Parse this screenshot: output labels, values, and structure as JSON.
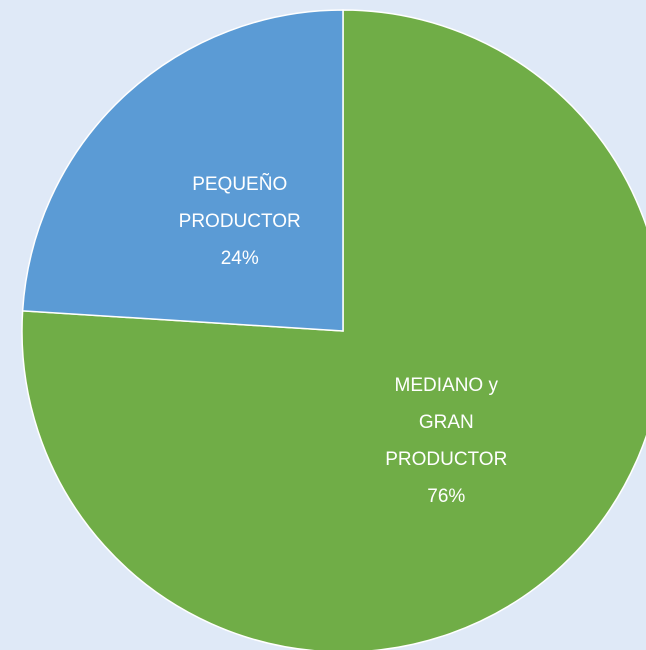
{
  "chart_data": {
    "type": "pie",
    "categories": [
      "MEDIANO y GRAN PRODUCTOR",
      "PEQUEÑO PRODUCTOR"
    ],
    "values": [
      76,
      24
    ],
    "value_labels": [
      "76%",
      "24%"
    ],
    "colors": [
      "#70ad47",
      "#5b9bd5"
    ],
    "start_angle": 0,
    "direction": "clockwise"
  }
}
